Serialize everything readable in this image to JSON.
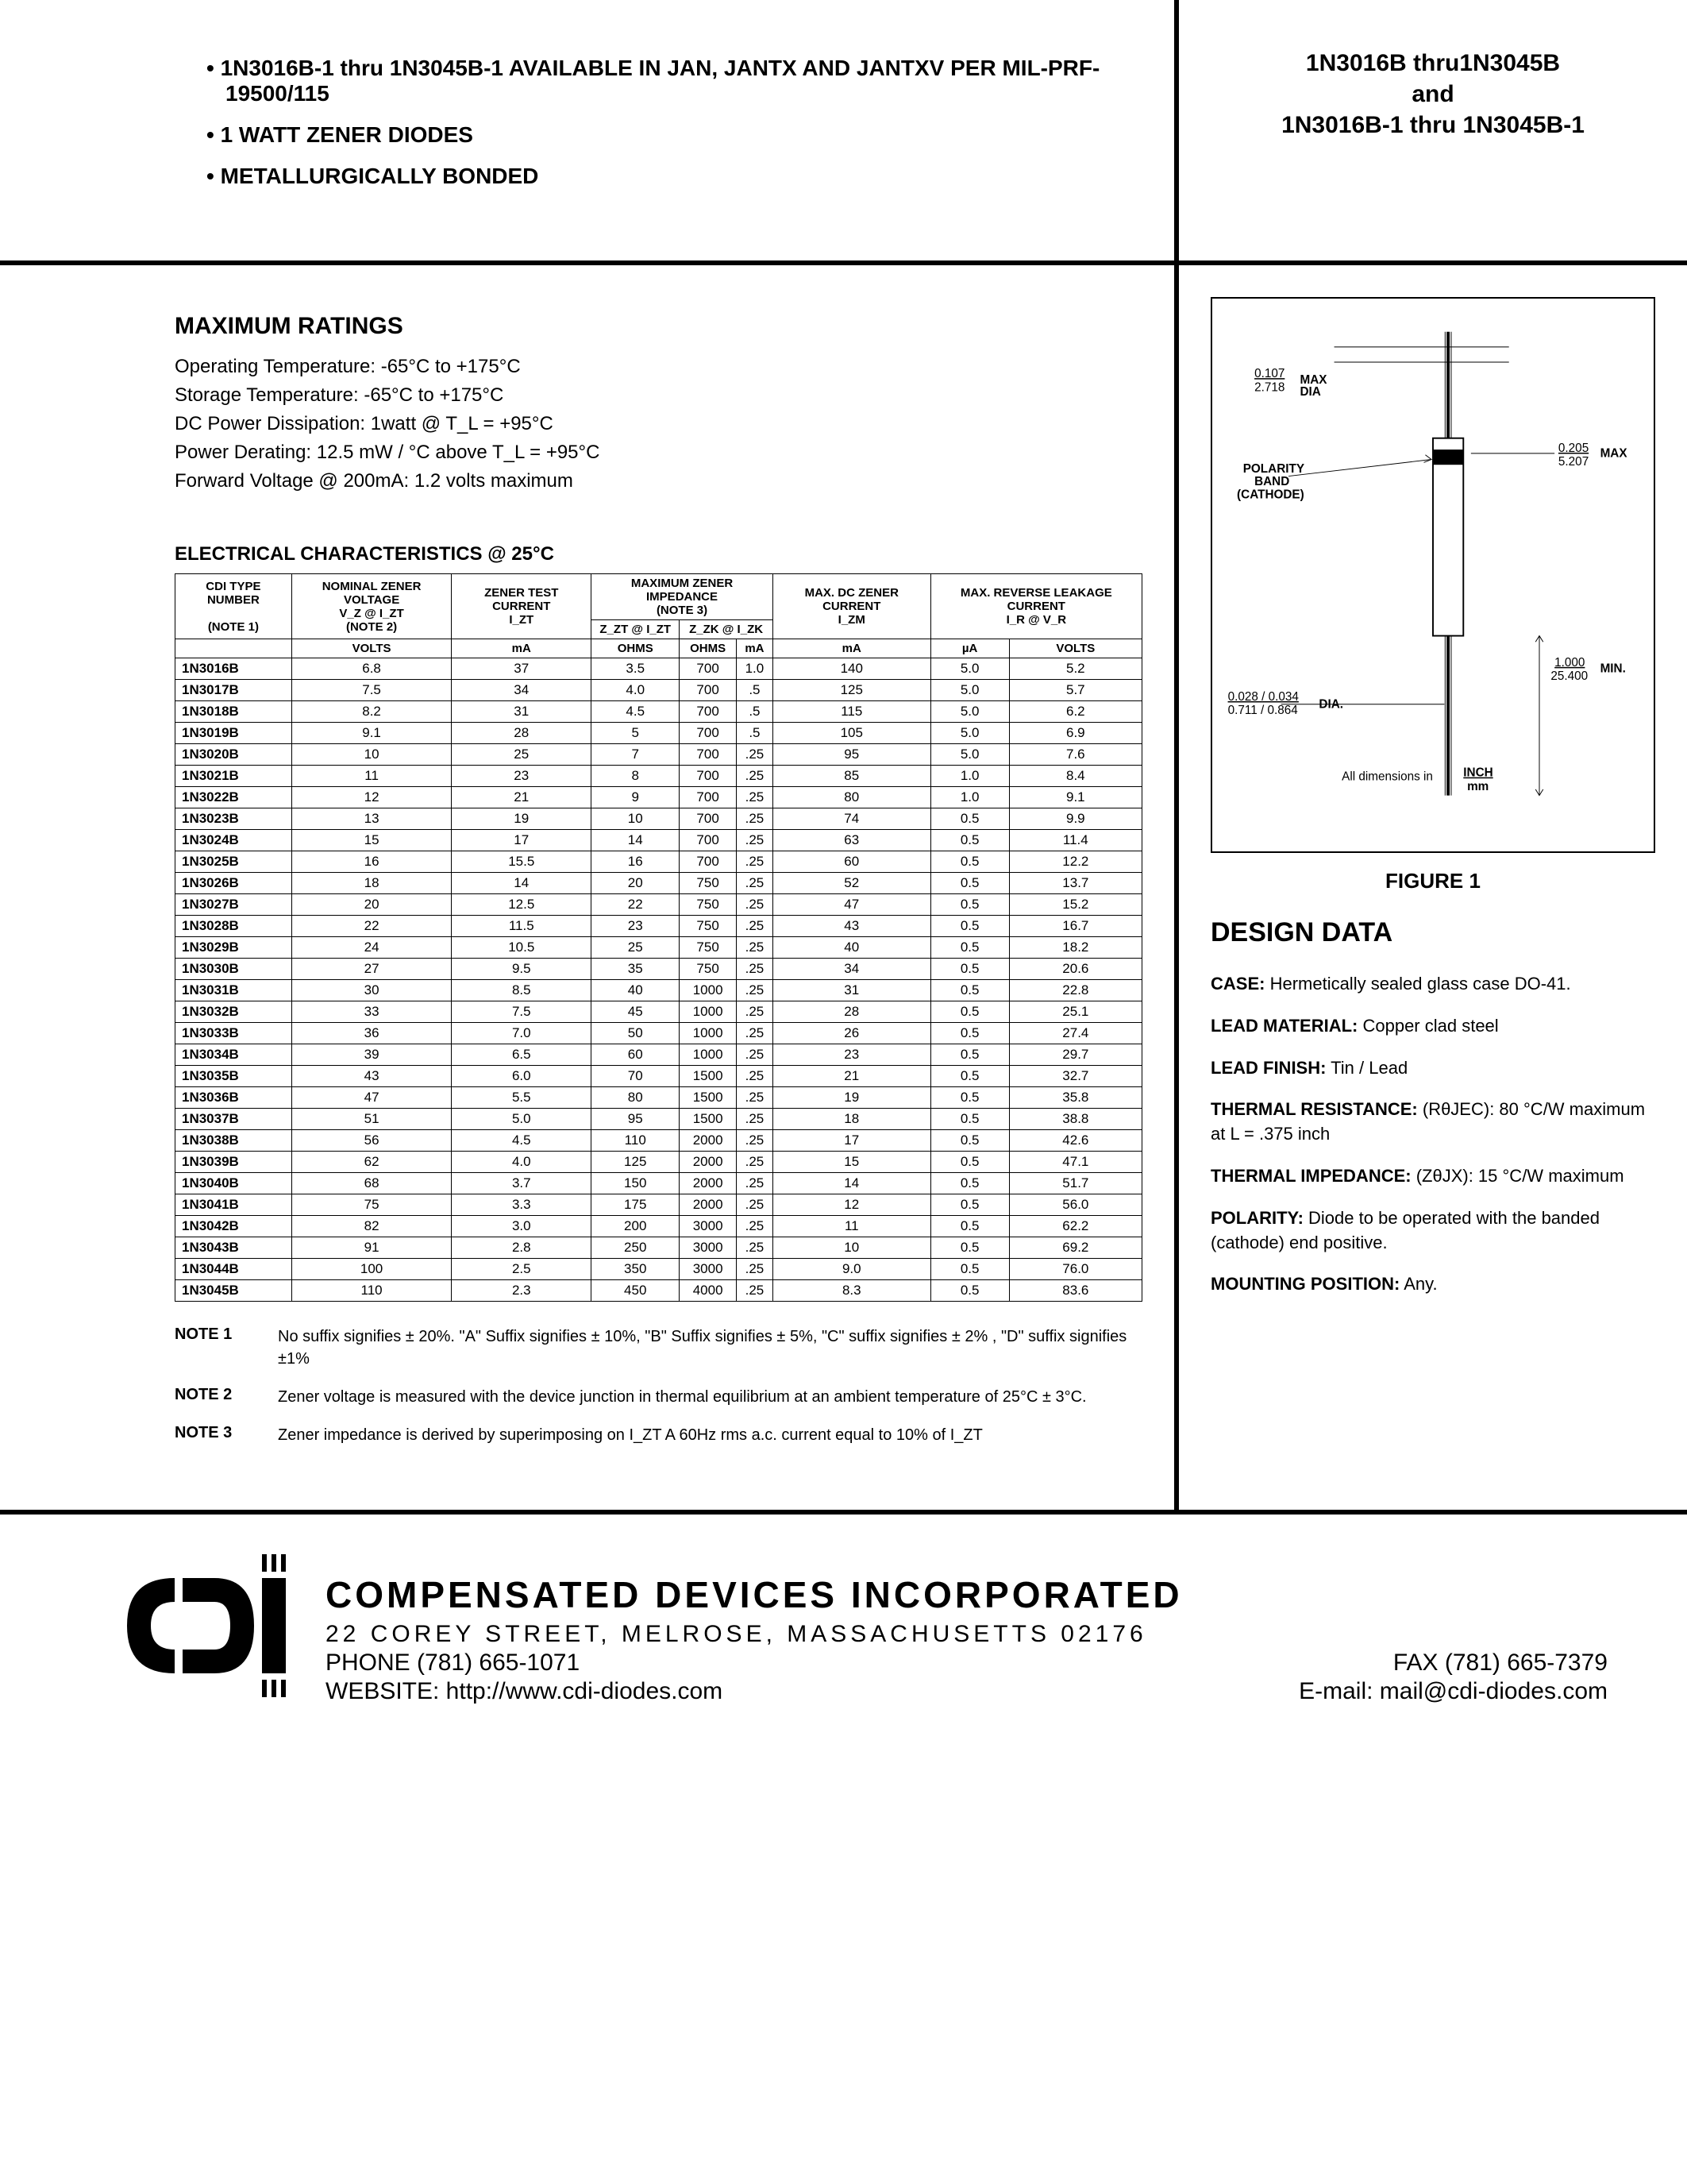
{
  "header": {
    "bullets": [
      "• 1N3016B-1 thru 1N3045B-1 AVAILABLE IN JAN, JANTX AND JANTXV PER MIL-PRF-19500/115",
      "• 1 WATT ZENER DIODES",
      "• METALLURGICALLY BONDED"
    ],
    "title1": "1N3016B thru1N3045B",
    "title2": "and",
    "title3": "1N3016B-1 thru 1N3045B-1"
  },
  "ratings": {
    "heading": "MAXIMUM RATINGS",
    "lines": [
      "Operating Temperature:  -65°C to +175°C",
      "Storage Temperature:  -65°C to +175°C",
      "DC Power Dissipation:  1watt @ T_L = +95°C",
      "Power Derating: 12.5 mW / °C above T_L = +95°C",
      "Forward Voltage @ 200mA: 1.2 volts maximum"
    ]
  },
  "elec": {
    "heading": "ELECTRICAL CHARACTERISTICS @ 25°C",
    "h_cdi": "CDI TYPE NUMBER",
    "h_note1": "(NOTE 1)",
    "h_nom": "NOMINAL ZENER VOLTAGE",
    "h_vz": "V_Z @ I_ZT",
    "h_note2": "(NOTE 2)",
    "h_test": "ZENER TEST CURRENT",
    "h_izt": "I_ZT",
    "h_maximp": "MAXIMUM  ZENER IMPEDANCE",
    "h_note3": "(NOTE 3)",
    "h_zzt": "Z_ZT @ I_ZT",
    "h_zzk": "Z_ZK @ I_ZK",
    "h_maxdc": "MAX. DC ZENER CURRENT",
    "h_izm": "I_ZM",
    "h_rev": "MAX. REVERSE LEAKAGE CURRENT",
    "h_ir": "I_R @ V_R",
    "u_volts": "VOLTS",
    "u_ma": "mA",
    "u_ohms": "OHMS",
    "u_ua": "µA",
    "groups": [
      [
        [
          "1N3016B",
          "6.8",
          "37",
          "3.5",
          "700",
          "1.0",
          "140",
          "5.0",
          "5.2"
        ],
        [
          "1N3017B",
          "7.5",
          "34",
          "4.0",
          "700",
          ".5",
          "125",
          "5.0",
          "5.7"
        ],
        [
          "1N3018B",
          "8.2",
          "31",
          "4.5",
          "700",
          ".5",
          "115",
          "5.0",
          "6.2"
        ],
        [
          "1N3019B",
          "9.1",
          "28",
          "5",
          "700",
          ".5",
          "105",
          "5.0",
          "6.9"
        ]
      ],
      [
        [
          "1N3020B",
          "10",
          "25",
          "7",
          "700",
          ".25",
          "95",
          "5.0",
          "7.6"
        ],
        [
          "1N3021B",
          "11",
          "23",
          "8",
          "700",
          ".25",
          "85",
          "1.0",
          "8.4"
        ],
        [
          "1N3022B",
          "12",
          "21",
          "9",
          "700",
          ".25",
          "80",
          "1.0",
          "9.1"
        ],
        [
          "1N3023B",
          "13",
          "19",
          "10",
          "700",
          ".25",
          "74",
          "0.5",
          "9.9"
        ]
      ],
      [
        [
          "1N3024B",
          "15",
          "17",
          "14",
          "700",
          ".25",
          "63",
          "0.5",
          "11.4"
        ],
        [
          "1N3025B",
          "16",
          "15.5",
          "16",
          "700",
          ".25",
          "60",
          "0.5",
          "12.2"
        ],
        [
          "1N3026B",
          "18",
          "14",
          "20",
          "750",
          ".25",
          "52",
          "0.5",
          "13.7"
        ],
        [
          "1N3027B",
          "20",
          "12.5",
          "22",
          "750",
          ".25",
          "47",
          "0.5",
          "15.2"
        ]
      ],
      [
        [
          "1N3028B",
          "22",
          "11.5",
          "23",
          "750",
          ".25",
          "43",
          "0.5",
          "16.7"
        ],
        [
          "1N3029B",
          "24",
          "10.5",
          "25",
          "750",
          ".25",
          "40",
          "0.5",
          "18.2"
        ],
        [
          "1N3030B",
          "27",
          "9.5",
          "35",
          "750",
          ".25",
          "34",
          "0.5",
          "20.6"
        ],
        [
          "1N3031B",
          "30",
          "8.5",
          "40",
          "1000",
          ".25",
          "31",
          "0.5",
          "22.8"
        ]
      ],
      [
        [
          "1N3032B",
          "33",
          "7.5",
          "45",
          "1000",
          ".25",
          "28",
          "0.5",
          "25.1"
        ],
        [
          "1N3033B",
          "36",
          "7.0",
          "50",
          "1000",
          ".25",
          "26",
          "0.5",
          "27.4"
        ],
        [
          "1N3034B",
          "39",
          "6.5",
          "60",
          "1000",
          ".25",
          "23",
          "0.5",
          "29.7"
        ],
        [
          "1N3035B",
          "43",
          "6.0",
          "70",
          "1500",
          ".25",
          "21",
          "0.5",
          "32.7"
        ]
      ],
      [
        [
          "1N3036B",
          "47",
          "5.5",
          "80",
          "1500",
          ".25",
          "19",
          "0.5",
          "35.8"
        ],
        [
          "1N3037B",
          "51",
          "5.0",
          "95",
          "1500",
          ".25",
          "18",
          "0.5",
          "38.8"
        ],
        [
          "1N3038B",
          "56",
          "4.5",
          "110",
          "2000",
          ".25",
          "17",
          "0.5",
          "42.6"
        ],
        [
          "1N3039B",
          "62",
          "4.0",
          "125",
          "2000",
          ".25",
          "15",
          "0.5",
          "47.1"
        ]
      ],
      [
        [
          "1N3040B",
          "68",
          "3.7",
          "150",
          "2000",
          ".25",
          "14",
          "0.5",
          "51.7"
        ],
        [
          "1N3041B",
          "75",
          "3.3",
          "175",
          "2000",
          ".25",
          "12",
          "0.5",
          "56.0"
        ],
        [
          "1N3042B",
          "82",
          "3.0",
          "200",
          "3000",
          ".25",
          "11",
          "0.5",
          "62.2"
        ],
        [
          "1N3043B",
          "91",
          "2.8",
          "250",
          "3000",
          ".25",
          "10",
          "0.5",
          "69.2"
        ]
      ],
      [
        [
          "1N3044B",
          "100",
          "2.5",
          "350",
          "3000",
          ".25",
          "9.0",
          "0.5",
          "76.0"
        ],
        [
          "1N3045B",
          "110",
          "2.3",
          "450",
          "4000",
          ".25",
          "8.3",
          "0.5",
          "83.6"
        ]
      ]
    ]
  },
  "notes": [
    {
      "lbl": "NOTE 1",
      "txt": "No suffix signifies ± 20%. \"A\" Suffix signifies ± 10%, \"B\" Suffix signifies ± 5%, \"C\" suffix signifies ± 2% , \"D\" suffix signifies ±1%"
    },
    {
      "lbl": "NOTE 2",
      "txt": "Zener voltage is measured with the device junction in thermal equilibrium at an ambient temperature of 25°C ± 3°C."
    },
    {
      "lbl": "NOTE 3",
      "txt": "Zener impedance is derived by superimposing on I_ZT A 60Hz rms a.c. current equal to 10% of I_ZT"
    }
  ],
  "figure": {
    "caption": "FIGURE 1",
    "dim_top": "0.107 / 2.718",
    "dim_top_lbl": "MAX DIA",
    "polarity": "POLARITY BAND (CATHODE)",
    "dim_body": "0.205 / 5.207",
    "dim_body_lbl": "MAX",
    "dim_len": "1.000 / 25.400",
    "dim_len_lbl": "MIN.",
    "dim_lead": "0.028 / 0.034 / 0.711 / 0.864",
    "dim_lead_lbl": "DIA.",
    "units": "All dimensions in  INCH / mm"
  },
  "design": {
    "heading": "DESIGN DATA",
    "case_lbl": "CASE:",
    "case_txt": "  Hermetically sealed glass case DO-41.",
    "lmat_lbl": "LEAD MATERIAL:",
    "lmat_txt": " Copper clad steel",
    "lfin_lbl": "LEAD FINISH:",
    "lfin_txt": " Tin / Lead",
    "tres_lbl": "THERMAL RESISTANCE:",
    "tres_txt": " (RθJEC): 80 °C/W maximum at L = .375 inch",
    "timp_lbl": "THERMAL IMPEDANCE:",
    "timp_txt": " (ZθJX): 15 °C/W maximum",
    "pol_lbl": "POLARITY:",
    "pol_txt": " Diode to be operated with the banded (cathode) end positive.",
    "mnt_lbl": "MOUNTING POSITION:",
    "mnt_txt": " Any."
  },
  "footer": {
    "company": "COMPENSATED DEVICES INCORPORATED",
    "addr": "22 COREY STREET, MELROSE, MASSACHUSETTS 02176",
    "phone": "PHONE (781) 665-1071",
    "fax": "FAX (781) 665-7379",
    "web": "WEBSITE:  http://www.cdi-diodes.com",
    "email": "E-mail: mail@cdi-diodes.com"
  }
}
